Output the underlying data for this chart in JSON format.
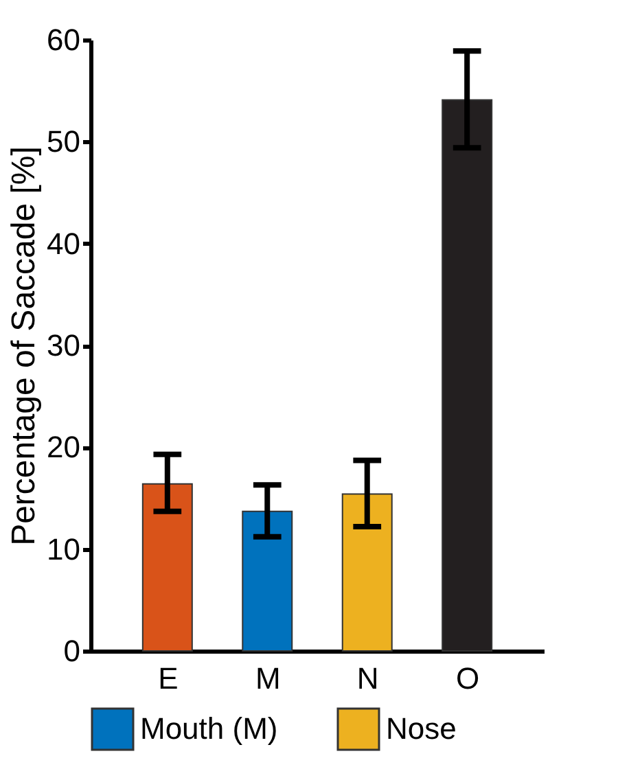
{
  "chart_data": {
    "type": "bar",
    "ylabel": "Percentage of Saccade [%]",
    "categories": [
      "E",
      "M",
      "N",
      "O"
    ],
    "series": [
      {
        "color": "#d95319",
        "values": [
          16.4,
          null,
          null,
          null
        ],
        "errors": [
          [
            13.7,
            19.3
          ],
          null,
          null,
          null
        ]
      },
      {
        "name": "Mouth (M)",
        "color": "#0072bd",
        "values": [
          null,
          13.7,
          null,
          null
        ],
        "errors": [
          null,
          [
            11.2,
            16.3
          ],
          null,
          null
        ]
      },
      {
        "name": "Nose",
        "color": "#edb120",
        "values": [
          null,
          null,
          15.4,
          null
        ],
        "errors": [
          null,
          null,
          [
            12.2,
            18.7
          ],
          null
        ]
      },
      {
        "color": "#231f20",
        "values": [
          null,
          null,
          null,
          54.1
        ],
        "errors": [
          null,
          null,
          null,
          [
            49.4,
            58.9
          ]
        ]
      }
    ],
    "ylim": [
      0,
      60
    ],
    "yticks": [
      0,
      10,
      20,
      30,
      40,
      50,
      60
    ],
    "grid": false,
    "legend": "bottom"
  }
}
